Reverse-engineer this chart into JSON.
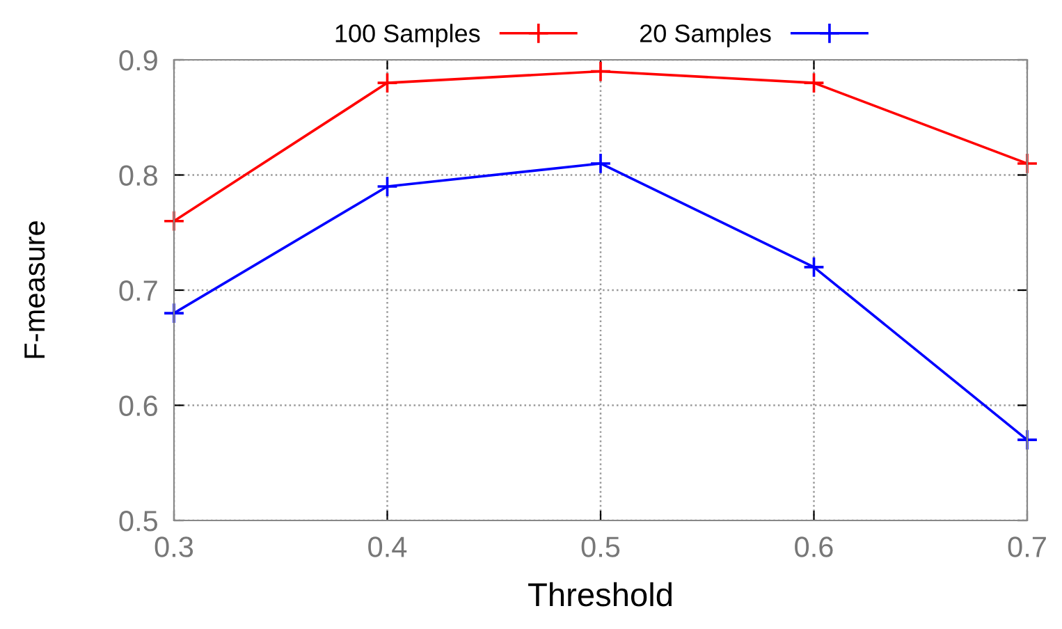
{
  "chart_data": {
    "type": "line",
    "xlabel": "Threshold",
    "ylabel": "F-measure",
    "x": [
      0.3,
      0.4,
      0.5,
      0.6,
      0.7
    ],
    "series": [
      {
        "name": "100 Samples",
        "color": "#ff0000",
        "values": [
          0.76,
          0.88,
          0.89,
          0.88,
          0.81
        ]
      },
      {
        "name": "20 Samples",
        "color": "#0000ff",
        "values": [
          0.68,
          0.79,
          0.81,
          0.72,
          0.57
        ]
      }
    ],
    "xlim": [
      0.3,
      0.7
    ],
    "xticks": [
      0.3,
      0.4,
      0.5,
      0.6,
      0.7
    ],
    "ylim": [
      0.5,
      0.9
    ],
    "yticks": [
      0.5,
      0.6,
      0.7,
      0.8,
      0.9
    ],
    "grid": true,
    "legend": "top",
    "marker": "cross",
    "line_style": "solid"
  }
}
